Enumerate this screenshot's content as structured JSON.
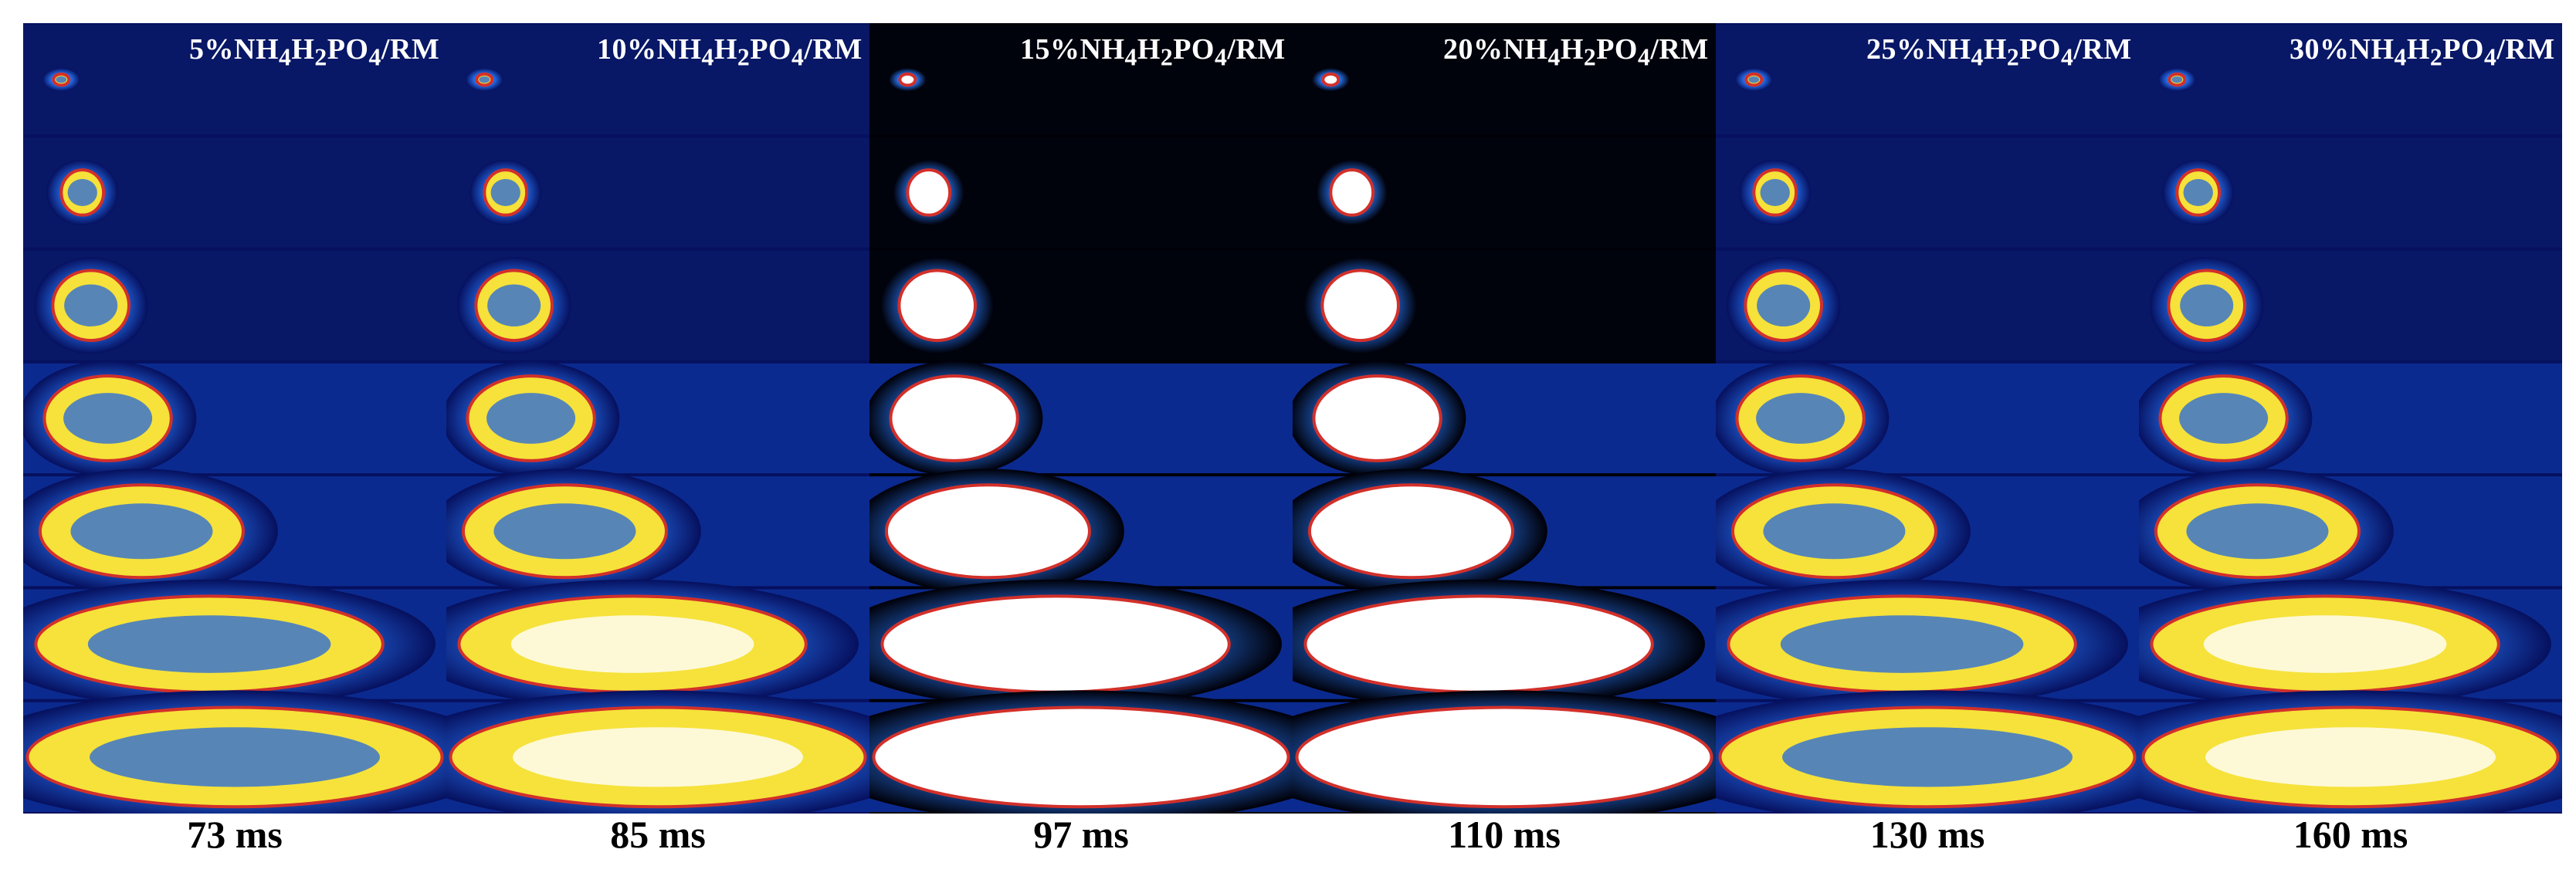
{
  "figure": {
    "panels": [
      {
        "label": "5%NH4H2PO4/RM",
        "time": "73 ms",
        "style": "speckle"
      },
      {
        "label": "10%NH4H2PO4/RM",
        "time": "85 ms",
        "style": "speckle-white"
      },
      {
        "label": "15%NH4H2PO4/RM",
        "time": "97 ms",
        "style": "saturated"
      },
      {
        "label": "20%NH4H2PO4/RM",
        "time": "110 ms",
        "style": "saturated"
      },
      {
        "label": "25%NH4H2PO4/RM",
        "time": "130 ms",
        "style": "speckle"
      },
      {
        "label": "30%NH4H2PO4/RM",
        "time": "160 ms",
        "style": "speckle-white"
      }
    ],
    "frames_per_panel": 7,
    "colors": {
      "background_dark": "#06105e",
      "background_black": "#000008",
      "glow": "#2a7cff",
      "hot_white": "#ffffff",
      "hot_yellow": "#f6e23a",
      "hot_red": "#d2302a"
    }
  }
}
